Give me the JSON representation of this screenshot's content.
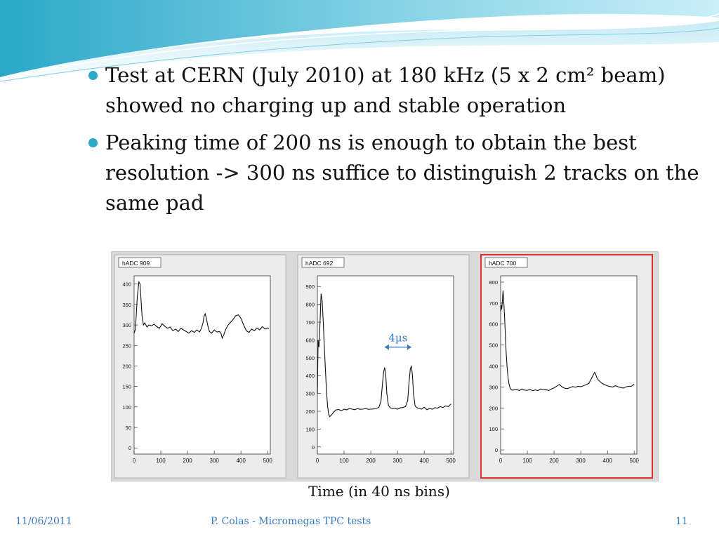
{
  "slide": {
    "bullets": [
      "Test at CERN (July 2010) at 180 kHz (5 x 2 cm² beam) showed no charging up and stable operation",
      "Peaking time of 200 ns is enough to obtain the best resolution -> 300 ns suffice to distinguish 2 tracks on the same pad"
    ],
    "caption": "Time (in 40 ns bins)",
    "footer": {
      "date": "11/06/2011",
      "title": "P. Colas - Micromegas TPC tests",
      "page": "11"
    },
    "accent_color": "#2aa8c8",
    "annotation_color": "#3a7bbf"
  },
  "chart_data": [
    {
      "type": "line",
      "title": "hADC 909",
      "xlim": [
        0,
        510
      ],
      "ylim": [
        -15,
        420
      ],
      "xticks": [
        0,
        100,
        200,
        300,
        400,
        500
      ],
      "yticks": [
        0,
        50,
        100,
        150,
        200,
        250,
        300,
        350,
        400
      ],
      "x": [
        0,
        5,
        12,
        18,
        22,
        26,
        30,
        35,
        40,
        48,
        55,
        65,
        75,
        85,
        95,
        105,
        115,
        125,
        135,
        145,
        155,
        165,
        175,
        185,
        195,
        205,
        215,
        225,
        235,
        245,
        252,
        258,
        262,
        266,
        270,
        276,
        282,
        290,
        300,
        310,
        320,
        326,
        330,
        336,
        342,
        350,
        360,
        370,
        380,
        390,
        400,
        410,
        420,
        430,
        440,
        450,
        460,
        470,
        480,
        490,
        500,
        505
      ],
      "y": [
        280,
        290,
        370,
        405,
        400,
        360,
        320,
        300,
        305,
        295,
        300,
        298,
        302,
        296,
        292,
        303,
        297,
        292,
        295,
        286,
        290,
        284,
        292,
        288,
        284,
        280,
        286,
        282,
        288,
        283,
        292,
        305,
        322,
        327,
        318,
        298,
        284,
        280,
        288,
        283,
        284,
        278,
        268,
        276,
        288,
        298,
        306,
        313,
        322,
        325,
        316,
        300,
        286,
        282,
        290,
        286,
        293,
        288,
        296,
        290,
        293,
        291
      ],
      "selected": false
    },
    {
      "type": "line",
      "title": "hADC 692",
      "xlim": [
        0,
        510
      ],
      "ylim": [
        -40,
        960
      ],
      "xticks": [
        0,
        100,
        200,
        300,
        400,
        500
      ],
      "yticks": [
        0,
        100,
        200,
        300,
        400,
        500,
        600,
        700,
        800,
        900
      ],
      "x": [
        0,
        3,
        6,
        10,
        14,
        18,
        22,
        26,
        30,
        34,
        38,
        42,
        46,
        52,
        60,
        70,
        80,
        90,
        100,
        110,
        120,
        130,
        140,
        150,
        160,
        170,
        180,
        190,
        200,
        210,
        220,
        230,
        238,
        243,
        248,
        252,
        256,
        260,
        266,
        272,
        280,
        290,
        300,
        310,
        320,
        330,
        338,
        343,
        348,
        352,
        356,
        360,
        366,
        372,
        380,
        390,
        400,
        410,
        420,
        430,
        440,
        450,
        460,
        470,
        480,
        490,
        500
      ],
      "y": [
        300,
        600,
        560,
        700,
        860,
        820,
        700,
        560,
        440,
        320,
        230,
        185,
        170,
        178,
        193,
        208,
        210,
        203,
        212,
        208,
        216,
        212,
        209,
        215,
        211,
        212,
        216,
        211,
        212,
        213,
        216,
        222,
        255,
        340,
        420,
        445,
        400,
        300,
        232,
        221,
        216,
        218,
        212,
        219,
        221,
        226,
        260,
        360,
        440,
        452,
        400,
        300,
        230,
        221,
        216,
        212,
        223,
        209,
        216,
        211,
        220,
        218,
        226,
        221,
        230,
        226,
        241
      ],
      "selected": false,
      "annotation": "4µs",
      "annotation_span": [
        252,
        352
      ]
    },
    {
      "type": "line",
      "title": "hADC 700",
      "xlim": [
        0,
        510
      ],
      "ylim": [
        -20,
        830
      ],
      "xticks": [
        0,
        100,
        200,
        300,
        400,
        500
      ],
      "yticks": [
        0,
        100,
        200,
        300,
        400,
        500,
        600,
        700,
        800
      ],
      "x": [
        0,
        2,
        4,
        6,
        9,
        12,
        16,
        20,
        24,
        28,
        32,
        36,
        40,
        45,
        50,
        60,
        70,
        80,
        90,
        100,
        110,
        120,
        130,
        140,
        150,
        160,
        170,
        180,
        190,
        200,
        210,
        220,
        230,
        240,
        250,
        260,
        270,
        280,
        290,
        300,
        310,
        320,
        330,
        340,
        348,
        352,
        356,
        360,
        366,
        372,
        380,
        390,
        400,
        410,
        420,
        430,
        440,
        450,
        460,
        470,
        480,
        490,
        500
      ],
      "y": [
        660,
        690,
        670,
        700,
        760,
        700,
        600,
        480,
        400,
        340,
        310,
        292,
        288,
        285,
        286,
        288,
        283,
        291,
        285,
        284,
        289,
        282,
        286,
        283,
        291,
        286,
        288,
        283,
        290,
        296,
        304,
        312,
        300,
        294,
        292,
        297,
        302,
        299,
        303,
        301,
        306,
        311,
        317,
        340,
        361,
        370,
        360,
        345,
        333,
        326,
        317,
        311,
        305,
        302,
        300,
        306,
        301,
        297,
        295,
        301,
        303,
        304,
        313
      ],
      "selected": true
    }
  ]
}
